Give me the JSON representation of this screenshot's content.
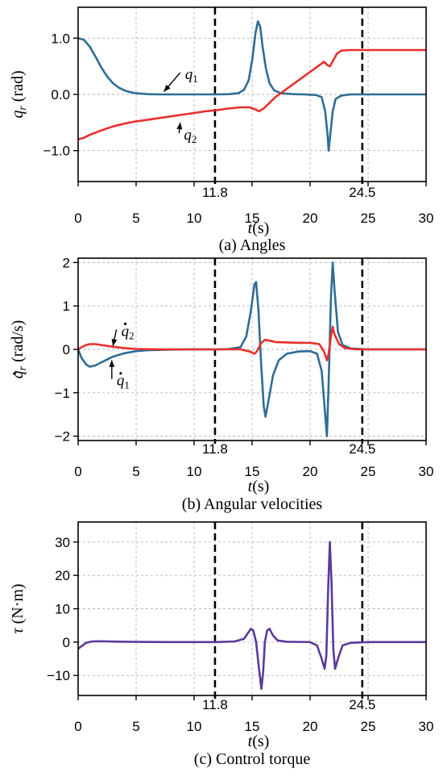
{
  "chart_data": [
    {
      "type": "line",
      "caption": "(a) Angles",
      "xlabel_var": "t",
      "xlabel_unit": "(s)",
      "ylabel_var": "q",
      "ylabel_sub": "r",
      "ylabel_unit": " (rad)",
      "xlim": [
        0,
        30
      ],
      "ylim": [
        -1.55,
        1.55
      ],
      "xticks": [
        0,
        5,
        10,
        15,
        20,
        25,
        30
      ],
      "yticks": [
        1.0,
        0.0,
        -1.0
      ],
      "ytick_labels": [
        "1.0",
        "0.0",
        "−1.0"
      ],
      "grid": true,
      "vlines": [
        11.8,
        24.5
      ],
      "vline_labels": [
        "11.8",
        "24.5"
      ],
      "series": [
        {
          "name": "q1",
          "color": "#2f6d96",
          "points": [
            [
              0,
              1.0
            ],
            [
              0.5,
              0.97
            ],
            [
              1,
              0.85
            ],
            [
              1.5,
              0.67
            ],
            [
              2,
              0.48
            ],
            [
              2.5,
              0.32
            ],
            [
              3,
              0.2
            ],
            [
              3.5,
              0.12
            ],
            [
              4,
              0.07
            ],
            [
              4.5,
              0.04
            ],
            [
              5,
              0.02
            ],
            [
              6,
              0.005
            ],
            [
              7,
              0.0
            ],
            [
              9,
              0.0
            ],
            [
              11,
              0.0
            ],
            [
              12,
              0.0
            ],
            [
              13,
              0.005
            ],
            [
              13.8,
              0.02
            ],
            [
              14.3,
              0.08
            ],
            [
              14.7,
              0.25
            ],
            [
              15.0,
              0.6
            ],
            [
              15.3,
              1.1
            ],
            [
              15.5,
              1.3
            ],
            [
              15.7,
              1.2
            ],
            [
              15.9,
              0.85
            ],
            [
              16.2,
              0.45
            ],
            [
              16.5,
              0.2
            ],
            [
              16.9,
              0.07
            ],
            [
              17.5,
              0.02
            ],
            [
              18.5,
              0.005
            ],
            [
              19.5,
              0.0
            ],
            [
              20.5,
              -0.01
            ],
            [
              21.0,
              -0.05
            ],
            [
              21.3,
              -0.3
            ],
            [
              21.5,
              -0.7
            ],
            [
              21.6,
              -1.0
            ],
            [
              21.75,
              -0.7
            ],
            [
              21.95,
              -0.3
            ],
            [
              22.2,
              -0.08
            ],
            [
              22.7,
              -0.02
            ],
            [
              23.5,
              0.0
            ],
            [
              30,
              0.0
            ]
          ]
        },
        {
          "name": "q2",
          "color": "#e8302e",
          "points": [
            [
              0,
              -0.8
            ],
            [
              0.5,
              -0.77
            ],
            [
              1,
              -0.72
            ],
            [
              2,
              -0.64
            ],
            [
              3,
              -0.57
            ],
            [
              4,
              -0.52
            ],
            [
              5,
              -0.48
            ],
            [
              6,
              -0.45
            ],
            [
              7,
              -0.42
            ],
            [
              8,
              -0.39
            ],
            [
              9,
              -0.36
            ],
            [
              10,
              -0.33
            ],
            [
              11,
              -0.3
            ],
            [
              12,
              -0.28
            ],
            [
              13,
              -0.25
            ],
            [
              14,
              -0.23
            ],
            [
              14.8,
              -0.23
            ],
            [
              15.3,
              -0.27
            ],
            [
              15.6,
              -0.3
            ],
            [
              16.0,
              -0.25
            ],
            [
              16.5,
              -0.15
            ],
            [
              17,
              -0.05
            ],
            [
              18,
              0.1
            ],
            [
              19,
              0.25
            ],
            [
              20,
              0.4
            ],
            [
              20.8,
              0.52
            ],
            [
              21.2,
              0.58
            ],
            [
              21.5,
              0.52
            ],
            [
              21.7,
              0.5
            ],
            [
              21.9,
              0.57
            ],
            [
              22.3,
              0.72
            ],
            [
              22.7,
              0.78
            ],
            [
              23.5,
              0.79
            ],
            [
              30,
              0.79
            ]
          ]
        }
      ],
      "annotations": [
        {
          "name": "q1",
          "sub": "1",
          "tx": 9.5,
          "ty": 0.36,
          "ax": 7.4,
          "ay": 0.05
        },
        {
          "name": "q2",
          "sub": "2",
          "tx": 9.4,
          "ty": -0.72,
          "ax": 8.8,
          "ay": -0.5
        }
      ]
    },
    {
      "type": "line",
      "caption": "(b) Angular velocities",
      "xlabel_var": "t",
      "xlabel_unit": "(s)",
      "ylabel_var": "q",
      "ylabel_sub": "r",
      "ylabel_unit": " (rad/s)",
      "xlim": [
        0,
        30
      ],
      "ylim": [
        -2.1,
        2.1
      ],
      "xticks": [
        0,
        5,
        10,
        15,
        20,
        25,
        30
      ],
      "yticks": [
        2,
        1,
        0,
        -1,
        -2
      ],
      "ytick_labels": [
        "2",
        "1",
        "0",
        "−1",
        "−2"
      ],
      "grid": true,
      "vlines": [
        11.8,
        24.5
      ],
      "vline_labels": [
        "11.8",
        "24.5"
      ],
      "series": [
        {
          "name": "q1 dot",
          "color": "#2f6d96",
          "points": [
            [
              0,
              0.0
            ],
            [
              0.3,
              -0.2
            ],
            [
              0.7,
              -0.35
            ],
            [
              1,
              -0.4
            ],
            [
              1.5,
              -0.37
            ],
            [
              2,
              -0.3
            ],
            [
              3,
              -0.17
            ],
            [
              4,
              -0.09
            ],
            [
              5,
              -0.04
            ],
            [
              6,
              -0.02
            ],
            [
              8,
              -0.005
            ],
            [
              10,
              0.0
            ],
            [
              12,
              0.0
            ],
            [
              13,
              0.01
            ],
            [
              14,
              0.05
            ],
            [
              14.5,
              0.3
            ],
            [
              14.9,
              0.9
            ],
            [
              15.2,
              1.5
            ],
            [
              15.35,
              1.55
            ],
            [
              15.55,
              0.9
            ],
            [
              15.75,
              -0.2
            ],
            [
              16.0,
              -1.3
            ],
            [
              16.15,
              -1.55
            ],
            [
              16.4,
              -1.2
            ],
            [
              16.8,
              -0.6
            ],
            [
              17.3,
              -0.25
            ],
            [
              18,
              -0.1
            ],
            [
              19,
              -0.05
            ],
            [
              20,
              -0.04
            ],
            [
              20.6,
              -0.1
            ],
            [
              21.0,
              -0.5
            ],
            [
              21.3,
              -1.5
            ],
            [
              21.45,
              -2.0
            ],
            [
              21.6,
              -0.8
            ],
            [
              21.8,
              1.2
            ],
            [
              21.95,
              2.0
            ],
            [
              22.1,
              1.4
            ],
            [
              22.4,
              0.4
            ],
            [
              22.8,
              0.1
            ],
            [
              23.5,
              0.02
            ],
            [
              25,
              0.0
            ],
            [
              30,
              0.0
            ]
          ]
        },
        {
          "name": "q2 dot",
          "color": "#e8302e",
          "points": [
            [
              0,
              0.0
            ],
            [
              0.3,
              0.05
            ],
            [
              0.7,
              0.1
            ],
            [
              1,
              0.12
            ],
            [
              1.5,
              0.12
            ],
            [
              2,
              0.1
            ],
            [
              3,
              0.06
            ],
            [
              4,
              0.03
            ],
            [
              5,
              0.01
            ],
            [
              7,
              0.0
            ],
            [
              12,
              0.0
            ],
            [
              14,
              0.0
            ],
            [
              14.8,
              -0.05
            ],
            [
              15.2,
              -0.1
            ],
            [
              15.4,
              -0.05
            ],
            [
              15.8,
              0.15
            ],
            [
              16.1,
              0.22
            ],
            [
              16.5,
              0.2
            ],
            [
              17,
              0.17
            ],
            [
              18,
              0.16
            ],
            [
              19,
              0.15
            ],
            [
              20,
              0.15
            ],
            [
              20.8,
              0.12
            ],
            [
              21.2,
              -0.05
            ],
            [
              21.45,
              -0.25
            ],
            [
              21.6,
              -0.1
            ],
            [
              21.8,
              0.3
            ],
            [
              21.95,
              0.52
            ],
            [
              22.1,
              0.35
            ],
            [
              22.5,
              0.12
            ],
            [
              23,
              0.03
            ],
            [
              24,
              0.0
            ],
            [
              30,
              0.0
            ]
          ]
        }
      ],
      "annotations": [
        {
          "name": "q2 dot",
          "sub": "2",
          "tx": 4.0,
          "ty": 0.42,
          "ax": 3.0,
          "ay": 0.08
        },
        {
          "name": "q1 dot",
          "sub": "1",
          "tx": 3.6,
          "ty": -0.72,
          "ax": 2.9,
          "ay": -0.25
        }
      ]
    },
    {
      "type": "line",
      "caption": "(c) Control torque",
      "xlabel_var": "t",
      "xlabel_unit": "(s)",
      "ylabel_var": "τ",
      "ylabel_sub": "",
      "ylabel_unit": " (N·m)",
      "xlim": [
        0,
        30
      ],
      "ylim": [
        -16,
        36
      ],
      "xticks": [
        0,
        5,
        10,
        15,
        20,
        25,
        30
      ],
      "yticks": [
        30,
        20,
        10,
        0,
        -10
      ],
      "ytick_labels": [
        "30",
        "20",
        "10",
        "0",
        "−10"
      ],
      "grid": true,
      "vlines": [
        11.8,
        24.5
      ],
      "vline_labels": [
        "11.8",
        "24.5"
      ],
      "series": [
        {
          "name": "tau",
          "color": "#5b3a9b",
          "points": [
            [
              0,
              -2.0
            ],
            [
              0.3,
              -1.2
            ],
            [
              0.7,
              -0.2
            ],
            [
              1.2,
              0.2
            ],
            [
              2,
              0.25
            ],
            [
              3,
              0.15
            ],
            [
              5,
              0.05
            ],
            [
              8,
              0.0
            ],
            [
              12,
              0.0
            ],
            [
              13.5,
              0.2
            ],
            [
              14.3,
              1.0
            ],
            [
              14.7,
              3.0
            ],
            [
              14.9,
              4.0
            ],
            [
              15.1,
              3.5
            ],
            [
              15.35,
              0.0
            ],
            [
              15.6,
              -8.0
            ],
            [
              15.8,
              -14.0
            ],
            [
              15.95,
              -9.0
            ],
            [
              16.1,
              0.0
            ],
            [
              16.3,
              3.5
            ],
            [
              16.5,
              4.0
            ],
            [
              16.8,
              2.0
            ],
            [
              17.2,
              0.5
            ],
            [
              18,
              0.1
            ],
            [
              20,
              0.0
            ],
            [
              20.6,
              -1.0
            ],
            [
              21.0,
              -5.0
            ],
            [
              21.25,
              -8.0
            ],
            [
              21.4,
              -4.0
            ],
            [
              21.55,
              15.0
            ],
            [
              21.7,
              30.0
            ],
            [
              21.85,
              18.0
            ],
            [
              22.0,
              -2.0
            ],
            [
              22.15,
              -8.0
            ],
            [
              22.4,
              -5.0
            ],
            [
              22.8,
              -1.0
            ],
            [
              23.5,
              -0.2
            ],
            [
              25,
              0.0
            ],
            [
              30,
              0.0
            ]
          ]
        }
      ],
      "annotations": []
    }
  ]
}
